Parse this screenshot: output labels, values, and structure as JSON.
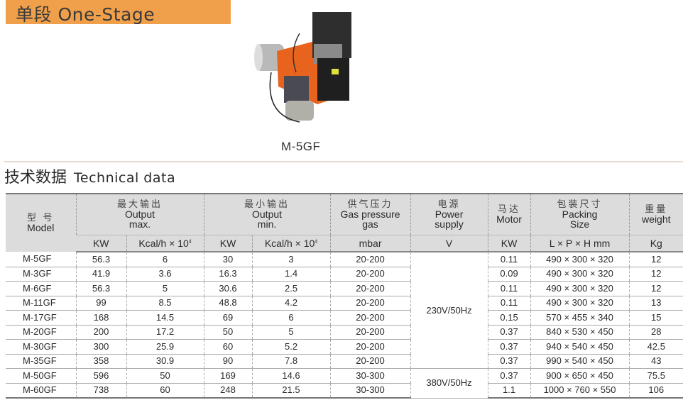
{
  "banner": {
    "title": "单段  One-Stage",
    "color": "#f0a04b"
  },
  "product": {
    "caption": "M-5GF"
  },
  "section": {
    "title_cn": "技术数据",
    "title_en": "Technical data"
  },
  "table": {
    "headers": {
      "model": {
        "cn": "型  号",
        "en": "Model"
      },
      "output_max": {
        "cn": "最大输出",
        "en1": "Output",
        "en2": "max."
      },
      "output_min": {
        "cn": "最小输出",
        "en1": "Output",
        "en2": "min."
      },
      "gas": {
        "cn": "供气压力",
        "en1": "Gas pressure",
        "en2": "gas"
      },
      "power": {
        "cn": "电源",
        "en1": "Power",
        "en2": "supply"
      },
      "motor": {
        "cn": "马达",
        "en": "Motor"
      },
      "packing": {
        "cn": "包装尺寸",
        "en1": "Packing",
        "en2": "Size"
      },
      "weight": {
        "cn": "重量",
        "en": "weight"
      }
    },
    "units": {
      "kw": "KW",
      "kcal": "Kcal/h × 10",
      "kcal_exp": "4",
      "mbar": "mbar",
      "v": "V",
      "motor_kw": "KW",
      "size": "L × P × H mm",
      "kg": "Kg"
    },
    "power_groups": [
      "230V/50Hz",
      "380V/50Hz"
    ],
    "rows": [
      {
        "model": "M-5GF",
        "max_kw": "56.3",
        "max_kcal": "6",
        "min_kw": "30",
        "min_kcal": "3",
        "gas": "20-200",
        "motor": "0.11",
        "size": "490 × 300 × 320",
        "weight": "12"
      },
      {
        "model": "M-3GF",
        "max_kw": "41.9",
        "max_kcal": "3.6",
        "min_kw": "16.3",
        "min_kcal": "1.4",
        "gas": "20-200",
        "motor": "0.09",
        "size": "490 × 300 × 320",
        "weight": "12"
      },
      {
        "model": "M-6GF",
        "max_kw": "56.3",
        "max_kcal": "5",
        "min_kw": "30.6",
        "min_kcal": "2.5",
        "gas": "20-200",
        "motor": "0.11",
        "size": "490 × 300 × 320",
        "weight": "12"
      },
      {
        "model": "M-11GF",
        "max_kw": "99",
        "max_kcal": "8.5",
        "min_kw": "48.8",
        "min_kcal": "4.2",
        "gas": "20-200",
        "motor": "0.11",
        "size": "490 × 300 × 320",
        "weight": "13"
      },
      {
        "model": "M-17GF",
        "max_kw": "168",
        "max_kcal": "14.5",
        "min_kw": "69",
        "min_kcal": "6",
        "gas": "20-200",
        "motor": "0.15",
        "size": "570 × 455 × 340",
        "weight": "15"
      },
      {
        "model": "M-20GF",
        "max_kw": "200",
        "max_kcal": "17.2",
        "min_kw": "50",
        "min_kcal": "5",
        "gas": "20-200",
        "motor": "0.37",
        "size": "840 × 530 × 450",
        "weight": "28"
      },
      {
        "model": "M-30GF",
        "max_kw": "300",
        "max_kcal": "25.9",
        "min_kw": "60",
        "min_kcal": "5.2",
        "gas": "20-200",
        "motor": "0.37",
        "size": "940 × 540 × 450",
        "weight": "42.5"
      },
      {
        "model": "M-35GF",
        "max_kw": "358",
        "max_kcal": "30.9",
        "min_kw": "90",
        "min_kcal": "7.8",
        "gas": "20-200",
        "motor": "0.37",
        "size": "990 × 540 × 450",
        "weight": "43"
      },
      {
        "model": "M-50GF",
        "max_kw": "596",
        "max_kcal": "50",
        "min_kw": "169",
        "min_kcal": "14.6",
        "gas": "30-300",
        "motor": "0.37",
        "size": "900 × 650 × 450",
        "weight": "75.5"
      },
      {
        "model": "M-60GF",
        "max_kw": "738",
        "max_kcal": "60",
        "min_kw": "248",
        "min_kcal": "21.5",
        "gas": "30-300",
        "motor": "1.1",
        "size": "1000 × 760 × 550",
        "weight": "106"
      }
    ]
  }
}
